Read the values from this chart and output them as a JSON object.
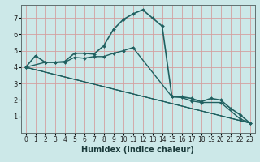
{
  "title": "",
  "xlabel": "Humidex (Indice chaleur)",
  "ylabel": "",
  "bg_color": "#cce8e8",
  "grid_color": "#d4a0a0",
  "line_color": "#206060",
  "xlim": [
    -0.5,
    23.5
  ],
  "ylim": [
    0,
    7.8
  ],
  "xticks": [
    0,
    1,
    2,
    3,
    4,
    5,
    6,
    7,
    8,
    9,
    10,
    11,
    12,
    13,
    14,
    15,
    16,
    17,
    18,
    19,
    20,
    21,
    22,
    23
  ],
  "yticks": [
    1,
    2,
    3,
    4,
    5,
    6,
    7
  ],
  "lines": [
    {
      "x": [
        0,
        1,
        2,
        3,
        4,
        5,
        6,
        7,
        8,
        9,
        10,
        11,
        12,
        13,
        14,
        15,
        16,
        17,
        18,
        19,
        20,
        21,
        22,
        23
      ],
      "y": [
        4.0,
        4.7,
        4.3,
        4.3,
        4.35,
        4.85,
        4.85,
        4.8,
        5.3,
        6.3,
        6.9,
        7.25,
        7.5,
        7.0,
        6.5,
        2.2,
        2.2,
        2.1,
        1.9,
        2.1,
        2.0,
        1.5,
        1.1,
        0.6
      ],
      "marker": true,
      "lw": 1.2
    },
    {
      "x": [
        0,
        2,
        3,
        4,
        5,
        6,
        7,
        8,
        9,
        10,
        11,
        15,
        16,
        17,
        18,
        20,
        22,
        23
      ],
      "y": [
        4.0,
        4.3,
        4.3,
        4.3,
        4.6,
        4.55,
        4.65,
        4.65,
        4.85,
        5.0,
        5.2,
        2.2,
        2.15,
        1.95,
        1.85,
        1.85,
        0.85,
        0.6
      ],
      "marker": true,
      "lw": 1.0
    },
    {
      "x": [
        0,
        23
      ],
      "y": [
        4.0,
        0.6
      ],
      "marker": false,
      "lw": 0.9
    },
    {
      "x": [
        0,
        23
      ],
      "y": [
        4.0,
        0.6
      ],
      "marker": false,
      "lw": 0.7
    },
    {
      "x": [
        0,
        23
      ],
      "y": [
        4.0,
        0.6
      ],
      "marker": false,
      "lw": 0.5
    }
  ]
}
